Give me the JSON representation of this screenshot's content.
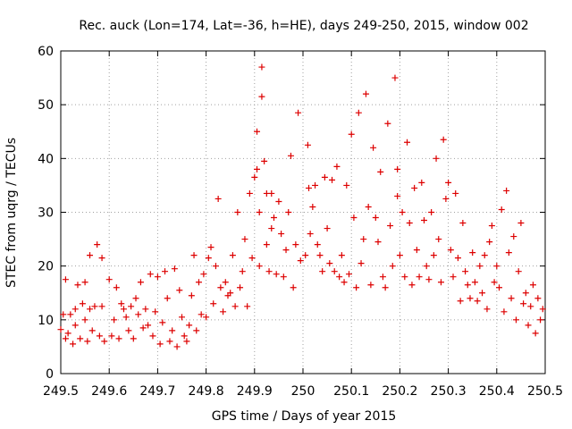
{
  "chart_data": {
    "type": "scatter",
    "title": "Rec. auck (Lon=174, Lat=-36, h=HE), days 249-250, 2015, window 002",
    "xlabel": "GPS time / Days of year 2015",
    "ylabel": "STEC from uqrg / TECUs",
    "xlim": [
      249.5,
      250.5
    ],
    "ylim": [
      0,
      60
    ],
    "xticks": [
      249.5,
      249.6,
      249.7,
      249.8,
      249.9,
      250,
      250.1,
      250.2,
      250.3,
      250.4,
      250.5
    ],
    "xtick_labels": [
      "249.5",
      "249.6",
      "249.7",
      "249.8",
      "249.9",
      "250",
      "250.1",
      "250.2",
      "250.3",
      "250.4",
      "250.5"
    ],
    "yticks": [
      0,
      10,
      20,
      30,
      40,
      50,
      60
    ],
    "ytick_labels": [
      "0",
      "10",
      "20",
      "30",
      "40",
      "50",
      "60"
    ],
    "grid": true,
    "marker": "+",
    "color": "#dd0000",
    "series": [
      {
        "name": "STEC",
        "points": [
          [
            249.5,
            8.2
          ],
          [
            249.505,
            11
          ],
          [
            249.51,
            6.5
          ],
          [
            249.51,
            17.5
          ],
          [
            249.515,
            7.5
          ],
          [
            249.52,
            11
          ],
          [
            249.525,
            5.5
          ],
          [
            249.53,
            9
          ],
          [
            249.53,
            12
          ],
          [
            249.535,
            16.5
          ],
          [
            249.54,
            6.5
          ],
          [
            249.545,
            13
          ],
          [
            249.55,
            17
          ],
          [
            249.55,
            10
          ],
          [
            249.555,
            6
          ],
          [
            249.56,
            12
          ],
          [
            249.56,
            22
          ],
          [
            249.565,
            8
          ],
          [
            249.57,
            12.5
          ],
          [
            249.575,
            24
          ],
          [
            249.58,
            7
          ],
          [
            249.585,
            12.5
          ],
          [
            249.585,
            21.5
          ],
          [
            249.59,
            6
          ],
          [
            249.6,
            17.5
          ],
          [
            249.605,
            7
          ],
          [
            249.61,
            10
          ],
          [
            249.615,
            16
          ],
          [
            249.62,
            6.5
          ],
          [
            249.625,
            13
          ],
          [
            249.63,
            12
          ],
          [
            249.635,
            10.5
          ],
          [
            249.64,
            8
          ],
          [
            249.645,
            12.5
          ],
          [
            249.65,
            6.5
          ],
          [
            249.655,
            14
          ],
          [
            249.66,
            11
          ],
          [
            249.665,
            17
          ],
          [
            249.67,
            8.5
          ],
          [
            249.675,
            12
          ],
          [
            249.68,
            9
          ],
          [
            249.685,
            18.5
          ],
          [
            249.69,
            7
          ],
          [
            249.695,
            11.5
          ],
          [
            249.7,
            18
          ],
          [
            249.705,
            5.5
          ],
          [
            249.71,
            9.5
          ],
          [
            249.715,
            19
          ],
          [
            249.72,
            14
          ],
          [
            249.725,
            6
          ],
          [
            249.73,
            8
          ],
          [
            249.735,
            19.5
          ],
          [
            249.74,
            5
          ],
          [
            249.745,
            15.5
          ],
          [
            249.75,
            10.5
          ],
          [
            249.755,
            7
          ],
          [
            249.76,
            6
          ],
          [
            249.765,
            9
          ],
          [
            249.77,
            14.5
          ],
          [
            249.775,
            22
          ],
          [
            249.78,
            8
          ],
          [
            249.785,
            17
          ],
          [
            249.79,
            11
          ],
          [
            249.795,
            18.5
          ],
          [
            249.8,
            10.5
          ],
          [
            249.805,
            21.5
          ],
          [
            249.81,
            23.5
          ],
          [
            249.815,
            13
          ],
          [
            249.82,
            20
          ],
          [
            249.825,
            32.5
          ],
          [
            249.83,
            16
          ],
          [
            249.835,
            11.5
          ],
          [
            249.84,
            17
          ],
          [
            249.845,
            14.5
          ],
          [
            249.85,
            15
          ],
          [
            249.855,
            22
          ],
          [
            249.86,
            12.5
          ],
          [
            249.865,
            30
          ],
          [
            249.87,
            16
          ],
          [
            249.875,
            19
          ],
          [
            249.88,
            25
          ],
          [
            249.885,
            12.5
          ],
          [
            249.89,
            33.5
          ],
          [
            249.895,
            21.5
          ],
          [
            249.9,
            36.5
          ],
          [
            249.905,
            45
          ],
          [
            249.905,
            38
          ],
          [
            249.91,
            20
          ],
          [
            249.91,
            30
          ],
          [
            249.915,
            57
          ],
          [
            249.915,
            51.5
          ],
          [
            249.92,
            39.5
          ],
          [
            249.925,
            33.5
          ],
          [
            249.925,
            24
          ],
          [
            249.93,
            19
          ],
          [
            249.935,
            27
          ],
          [
            249.935,
            33.5
          ],
          [
            249.94,
            29
          ],
          [
            249.945,
            18.5
          ],
          [
            249.95,
            32
          ],
          [
            249.955,
            26
          ],
          [
            249.96,
            18
          ],
          [
            249.965,
            23
          ],
          [
            249.97,
            30
          ],
          [
            249.975,
            40.5
          ],
          [
            249.98,
            16
          ],
          [
            249.985,
            24
          ],
          [
            249.99,
            48.5
          ],
          [
            249.995,
            21
          ],
          [
            250.005,
            22
          ],
          [
            250.01,
            42.5
          ],
          [
            250.012,
            34.5
          ],
          [
            250.015,
            26
          ],
          [
            250.02,
            31
          ],
          [
            250.025,
            35
          ],
          [
            250.03,
            24
          ],
          [
            250.035,
            22
          ],
          [
            250.04,
            19
          ],
          [
            250.045,
            36.5
          ],
          [
            250.05,
            27
          ],
          [
            250.055,
            20.5
          ],
          [
            250.06,
            36
          ],
          [
            250.065,
            19
          ],
          [
            250.07,
            38.5
          ],
          [
            250.075,
            18
          ],
          [
            250.08,
            22
          ],
          [
            250.085,
            17
          ],
          [
            250.09,
            35
          ],
          [
            250.095,
            18.5
          ],
          [
            250.1,
            44.5
          ],
          [
            250.105,
            29
          ],
          [
            250.11,
            16
          ],
          [
            250.115,
            48.5
          ],
          [
            250.12,
            20.5
          ],
          [
            250.125,
            25
          ],
          [
            250.13,
            52
          ],
          [
            250.135,
            31
          ],
          [
            250.14,
            16.5
          ],
          [
            250.145,
            42
          ],
          [
            250.15,
            29
          ],
          [
            250.155,
            24.5
          ],
          [
            250.16,
            37.5
          ],
          [
            250.165,
            18
          ],
          [
            250.17,
            16
          ],
          [
            250.175,
            46.5
          ],
          [
            250.18,
            27.5
          ],
          [
            250.185,
            20
          ],
          [
            250.19,
            55
          ],
          [
            250.195,
            38
          ],
          [
            250.195,
            33
          ],
          [
            250.2,
            22
          ],
          [
            250.205,
            30
          ],
          [
            250.21,
            18
          ],
          [
            250.215,
            43
          ],
          [
            250.22,
            28
          ],
          [
            250.225,
            16.5
          ],
          [
            250.23,
            34.5
          ],
          [
            250.235,
            23
          ],
          [
            250.24,
            18
          ],
          [
            250.245,
            35.5
          ],
          [
            250.25,
            28.5
          ],
          [
            250.255,
            20
          ],
          [
            250.26,
            17.5
          ],
          [
            250.265,
            30
          ],
          [
            250.27,
            22
          ],
          [
            250.275,
            40
          ],
          [
            250.28,
            25
          ],
          [
            250.285,
            17
          ],
          [
            250.29,
            43.5
          ],
          [
            250.295,
            32.5
          ],
          [
            250.3,
            35.5
          ],
          [
            250.305,
            23
          ],
          [
            250.31,
            18
          ],
          [
            250.315,
            33.5
          ],
          [
            250.32,
            21.5
          ],
          [
            250.325,
            13.5
          ],
          [
            250.33,
            28
          ],
          [
            250.335,
            19
          ],
          [
            250.34,
            16.5
          ],
          [
            250.345,
            14
          ],
          [
            250.35,
            22.5
          ],
          [
            250.355,
            17
          ],
          [
            250.36,
            13.5
          ],
          [
            250.365,
            20
          ],
          [
            250.37,
            15
          ],
          [
            250.375,
            22
          ],
          [
            250.38,
            12
          ],
          [
            250.385,
            24.5
          ],
          [
            250.39,
            27.5
          ],
          [
            250.395,
            17
          ],
          [
            250.4,
            20
          ],
          [
            250.405,
            16
          ],
          [
            250.41,
            30.5
          ],
          [
            250.415,
            11.5
          ],
          [
            250.42,
            34
          ],
          [
            250.425,
            22.5
          ],
          [
            250.43,
            14
          ],
          [
            250.435,
            25.5
          ],
          [
            250.44,
            10
          ],
          [
            250.445,
            19
          ],
          [
            250.45,
            28
          ],
          [
            250.455,
            13
          ],
          [
            250.46,
            15
          ],
          [
            250.465,
            9
          ],
          [
            250.47,
            12.5
          ],
          [
            250.475,
            16.5
          ],
          [
            250.48,
            7.5
          ],
          [
            250.485,
            14
          ],
          [
            250.49,
            10
          ],
          [
            250.495,
            12
          ]
        ]
      }
    ]
  }
}
